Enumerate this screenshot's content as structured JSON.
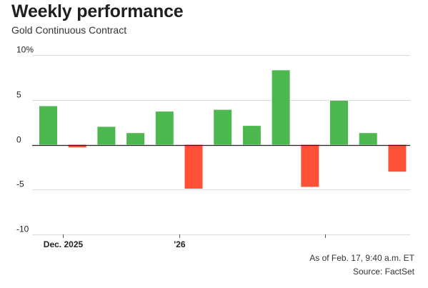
{
  "colors": {
    "positive": "#4cb84f",
    "negative": "#ff5038",
    "gridline": "#dcdcdc",
    "baseline": "#222222"
  },
  "footer": {
    "as_of": "As of Feb. 17, 9:40 a.m. ET",
    "source": "Source: FactSet"
  },
  "chart_data": {
    "type": "bar",
    "title": "Weekly performance",
    "subtitle": "Gold Continuous Contract",
    "xlabel": "",
    "ylabel": "",
    "unit": "%",
    "ylim": [
      -10,
      10
    ],
    "y_ticks": [
      {
        "value": 10,
        "label": "10%"
      },
      {
        "value": 5,
        "label": "5"
      },
      {
        "value": 0,
        "label": "0"
      },
      {
        "value": -5,
        "label": "-5"
      },
      {
        "value": -10,
        "label": "-10"
      }
    ],
    "x_ticks": [
      {
        "after_bar": 1,
        "label": "Dec. 2025"
      },
      {
        "after_bar": 5,
        "label": "'26"
      },
      {
        "after_bar": 10,
        "label": ""
      }
    ],
    "grid": true,
    "legend": "none",
    "values": [
      4.3,
      -0.3,
      2.0,
      1.3,
      3.7,
      -4.9,
      3.9,
      2.1,
      8.3,
      -4.7,
      4.9,
      1.3,
      -3.0
    ]
  }
}
